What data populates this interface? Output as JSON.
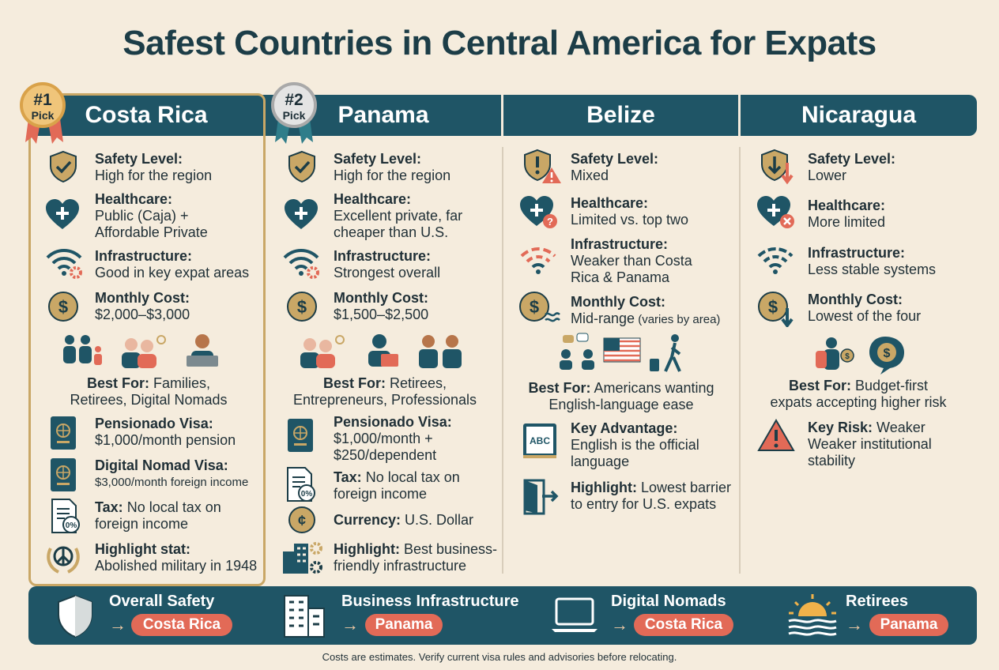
{
  "title": "Safest Countries in Central America for Expats",
  "colors": {
    "navy": "#1f5566",
    "gold": "#c9a766",
    "coral": "#e26a57",
    "bg": "#f5ecdd"
  },
  "badges": {
    "first": {
      "number": "#1",
      "text": "Pick"
    },
    "second": {
      "number": "#2",
      "text": "Pick"
    }
  },
  "columns": {
    "costa_rica": {
      "name": "Costa Rica",
      "safety": {
        "label": "Safety Level:",
        "line1": "High for the region"
      },
      "healthcare": {
        "label": "Healthcare:",
        "line1": "Public (Caja) +",
        "line2": "Affordable Private"
      },
      "infrastructure": {
        "label": "Infrastructure:",
        "line1": "Good in key expat areas"
      },
      "cost": {
        "label": "Monthly Cost:",
        "line1": "$2,000–$3,000"
      },
      "best_for": {
        "label": "Best For:",
        "line1": " Families,",
        "line2": "Retirees, Digital Nomads"
      },
      "pensionado": {
        "label": "Pensionado Visa:",
        "line1": "$1,000/month pension"
      },
      "nomad": {
        "label": "Digital Nomad Visa:",
        "line1": "$3,000/month foreign income"
      },
      "tax": {
        "label": "Tax:",
        "value": " No local tax on",
        "line2": "foreign income"
      },
      "highlight": {
        "label": "Highlight stat:",
        "line1": "Abolished military in 1948"
      }
    },
    "panama": {
      "name": "Panama",
      "safety": {
        "label": "Safety Level:",
        "line1": "High for the region"
      },
      "healthcare": {
        "label": "Healthcare:",
        "line1": "Excellent private, far",
        "line2": "cheaper than U.S."
      },
      "infrastructure": {
        "label": "Infrastructure:",
        "line1": "Strongest overall"
      },
      "cost": {
        "label": "Monthly Cost:",
        "line1": "$1,500–$2,500"
      },
      "best_for": {
        "label": "Best For:",
        "line1": " Retirees,",
        "line2": "Entrepreneurs, Professionals"
      },
      "pensionado": {
        "label": "Pensionado Visa:",
        "line1": "$1,000/month +",
        "line2": "$250/dependent"
      },
      "tax": {
        "label": "Tax:",
        "value": " No local tax on",
        "line2": "foreign income"
      },
      "currency": {
        "label": "Currency:",
        "value": " U.S. Dollar"
      },
      "highlight": {
        "label": "Highlight:",
        "value": " Best business-",
        "line2": "friendly infrastructure"
      }
    },
    "belize": {
      "name": "Belize",
      "safety": {
        "label": "Safety Level:",
        "line1": "Mixed"
      },
      "healthcare": {
        "label": "Healthcare:",
        "line1": "Limited vs. top two"
      },
      "infrastructure": {
        "label": "Infrastructure:",
        "line1": "Weaker than Costa",
        "line2": "Rica & Panama"
      },
      "cost": {
        "label": "Monthly Cost:",
        "line1": "Mid-range",
        "note": " (varies by area)"
      },
      "best_for": {
        "label": "Best For:",
        "line1": " Americans wanting",
        "line2": "English-language ease"
      },
      "advantage": {
        "label": "Key Advantage:",
        "line1": "English is the official",
        "line2": "language"
      },
      "highlight": {
        "label": "Highlight:",
        "value": " Lowest barrier",
        "line2": "to entry for U.S. expats"
      },
      "book_text": "ABC"
    },
    "nicaragua": {
      "name": "Nicaragua",
      "safety": {
        "label": "Safety Level:",
        "line1": "Lower"
      },
      "healthcare": {
        "label": "Healthcare:",
        "line1": "More limited"
      },
      "infrastructure": {
        "label": "Infrastructure:",
        "line1": "Less stable systems"
      },
      "cost": {
        "label": "Monthly Cost:",
        "line1": "Lowest of the four"
      },
      "best_for": {
        "label": "Best For:",
        "line1": " Budget-first",
        "line2": "expats accepting higher risk"
      },
      "risk": {
        "label": "Key Risk:",
        "value": " Weaker",
        "line2": "Weaker institutional",
        "line3": "stability"
      }
    }
  },
  "bottom": [
    {
      "label": "Overall Safety",
      "arrow": "→",
      "winner": "Costa Rica"
    },
    {
      "label": "Business Infrastructure",
      "arrow": "→",
      "winner": "Panama"
    },
    {
      "label": "Digital Nomads",
      "arrow": "→",
      "winner": "Costa Rica"
    },
    {
      "label": "Retirees",
      "arrow": "→",
      "winner": "Panama"
    }
  ],
  "icons": {
    "safety": "shield-check-icon",
    "healthcare": "heart-plus-icon",
    "infrastructure": "wifi-gear-icon",
    "cost": "dollar-coin-icon",
    "visa": "passport-icon",
    "tax": "tax-document-icon",
    "highlight_cr": "peace-wreath-icon",
    "highlight_pa": "buildings-gear-icon",
    "currency": "currency-coin-icon",
    "warning": "warning-shield-icon",
    "book": "book-icon",
    "door": "door-exit-icon"
  },
  "footer": "Costs are estimates. Verify current visa rules and advisories before relocating."
}
